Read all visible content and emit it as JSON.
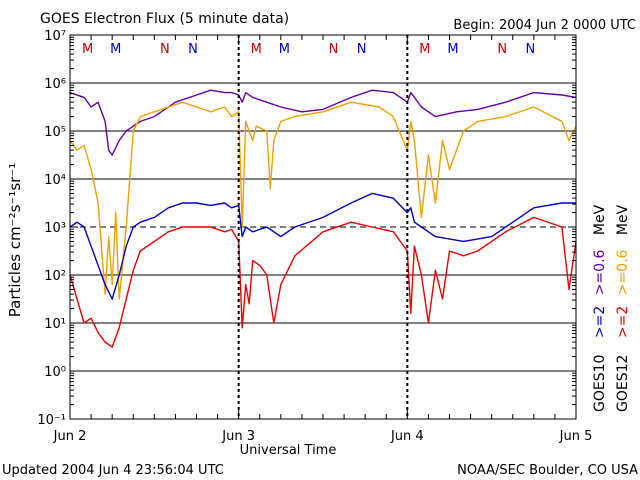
{
  "chart_data": {
    "type": "line",
    "title": "GOES Electron Flux (5 minute data)",
    "begin": "Begin: 2004 Jun 2 0000 UTC",
    "xlabel": "Universal Time",
    "ylabel": "Particles cm⁻²s⁻¹sr⁻¹",
    "x_ticks": [
      "Jun 2",
      "Jun 3",
      "Jun 4",
      "Jun 5"
    ],
    "xlim_hours": [
      0,
      72
    ],
    "y_scale": "log",
    "ylim_exp": [
      -1,
      7
    ],
    "y_tick_labels": [
      "10⁻¹",
      "10⁰",
      "10¹",
      "10²",
      "10³",
      "10⁴",
      "10⁵",
      "10⁶",
      "10⁷"
    ],
    "threshold_line": 1000,
    "updated": "Updated 2004 Jun  4 23:56:04 UTC",
    "credit": "NOAA/SEC Boulder, CO USA",
    "markers": [
      {
        "label": "M",
        "hour": 2.5,
        "color": "#cc0000"
      },
      {
        "label": "M",
        "hour": 6.5,
        "color": "#0000cc"
      },
      {
        "label": "N",
        "hour": 13.5,
        "color": "#cc0000"
      },
      {
        "label": "N",
        "hour": 17.5,
        "color": "#0000cc"
      },
      {
        "label": "M",
        "hour": 26.5,
        "color": "#cc0000"
      },
      {
        "label": "M",
        "hour": 30.5,
        "color": "#0000cc"
      },
      {
        "label": "N",
        "hour": 37.5,
        "color": "#cc0000"
      },
      {
        "label": "N",
        "hour": 41.5,
        "color": "#0000cc"
      },
      {
        "label": "M",
        "hour": 50.5,
        "color": "#cc0000"
      },
      {
        "label": "M",
        "hour": 54.5,
        "color": "#0000cc"
      },
      {
        "label": "N",
        "hour": 61.5,
        "color": "#cc0000"
      },
      {
        "label": "N",
        "hour": 65.5,
        "color": "#0000cc"
      }
    ],
    "legend": {
      "goes10": {
        "label": "GOES10",
        "e2": ">=2",
        "e06": ">=0.6",
        "e2_color": "#0000cc",
        "e06_color": "#6600aa"
      },
      "goes12": {
        "label": "GOES12",
        "e2": ">=2",
        "e06": ">=0.6",
        "e2_color": "#ee0000",
        "e06_color": "#f0a000"
      },
      "unit": "MeV"
    },
    "series": [
      {
        "name": "GOES10 >=0.6 MeV",
        "color": "#6600aa",
        "x": [
          0,
          2,
          3,
          4,
          5,
          5.5,
          6,
          7,
          8,
          10,
          12,
          15,
          18,
          20,
          22,
          23,
          24,
          24.5,
          25,
          26,
          28,
          30,
          33,
          36,
          40,
          43,
          46,
          48,
          48.5,
          49,
          50,
          52,
          55,
          58,
          62,
          66,
          70,
          72
        ],
        "y_log": [
          5.8,
          5.7,
          5.5,
          5.6,
          5.2,
          4.6,
          4.5,
          4.8,
          5.0,
          5.2,
          5.3,
          5.6,
          5.75,
          5.85,
          5.8,
          5.8,
          5.75,
          5.6,
          5.8,
          5.7,
          5.6,
          5.5,
          5.4,
          5.45,
          5.7,
          5.85,
          5.8,
          5.6,
          5.8,
          5.7,
          5.5,
          5.3,
          5.4,
          5.45,
          5.6,
          5.8,
          5.75,
          5.7
        ]
      },
      {
        "name": "GOES12 >=0.6 MeV",
        "color": "#f0a000",
        "x": [
          0,
          1,
          2,
          3,
          4,
          5,
          5.5,
          6,
          6.5,
          7,
          8,
          9,
          10,
          12,
          14,
          16,
          18,
          20,
          22,
          23,
          24,
          24.5,
          25,
          25.5,
          26,
          26.5,
          28,
          28.5,
          29,
          30,
          32,
          36,
          40,
          44,
          46,
          48,
          48.5,
          49,
          50,
          51,
          52,
          53,
          54,
          56,
          58,
          62,
          66,
          70,
          71,
          72
        ],
        "y_log": [
          4.8,
          4.6,
          4.7,
          4.2,
          3.5,
          1.6,
          2.8,
          1.8,
          3.3,
          1.5,
          3.0,
          5.0,
          5.3,
          5.4,
          5.5,
          5.6,
          5.5,
          5.4,
          5.5,
          5.3,
          5.4,
          3.0,
          5.2,
          5.0,
          4.8,
          5.1,
          5.0,
          3.8,
          4.8,
          5.2,
          5.3,
          5.4,
          5.6,
          5.5,
          5.3,
          4.6,
          5.2,
          4.8,
          3.2,
          4.5,
          3.5,
          4.8,
          4.2,
          5.0,
          5.2,
          5.3,
          5.5,
          5.2,
          4.8,
          5.1
        ]
      },
      {
        "name": "GOES10 >=2 MeV",
        "color": "#0000cc",
        "x": [
          0,
          1,
          2,
          3,
          4,
          5,
          6,
          7,
          8,
          9,
          10,
          12,
          14,
          16,
          18,
          20,
          22,
          23,
          24,
          24.5,
          25,
          26,
          28,
          30,
          32,
          36,
          40,
          43,
          46,
          48,
          48.5,
          49,
          50,
          51,
          52,
          56,
          60,
          64,
          66,
          70,
          72
        ],
        "y_log": [
          3.0,
          3.1,
          3.0,
          2.6,
          2.2,
          1.8,
          1.5,
          2.0,
          2.6,
          3.0,
          3.1,
          3.2,
          3.4,
          3.5,
          3.5,
          3.45,
          3.5,
          3.4,
          3.45,
          2.8,
          3.0,
          2.9,
          3.0,
          2.8,
          3.0,
          3.2,
          3.5,
          3.7,
          3.6,
          3.3,
          3.4,
          3.1,
          3.0,
          2.9,
          2.8,
          2.7,
          2.8,
          3.2,
          3.4,
          3.5,
          3.5
        ]
      },
      {
        "name": "GOES12 >=2 MeV",
        "color": "#ee0000",
        "x": [
          0,
          1,
          2,
          3,
          4,
          5,
          6,
          7,
          8,
          9,
          10,
          12,
          14,
          16,
          18,
          20,
          22,
          23,
          24,
          24.5,
          25,
          25.5,
          26,
          27,
          28,
          29,
          30,
          32,
          36,
          40,
          43,
          46,
          48,
          48.5,
          49,
          50,
          51,
          52,
          53,
          54,
          56,
          58,
          62,
          66,
          70,
          71,
          72
        ],
        "y_log": [
          2.0,
          1.5,
          1.0,
          1.1,
          0.8,
          0.6,
          0.5,
          0.9,
          1.5,
          2.1,
          2.5,
          2.7,
          2.9,
          3.0,
          3.0,
          3.0,
          2.9,
          2.95,
          2.7,
          0.9,
          1.8,
          1.4,
          2.3,
          2.2,
          2.0,
          1.0,
          1.8,
          2.4,
          2.9,
          3.1,
          3.0,
          2.9,
          2.5,
          1.2,
          2.6,
          2.0,
          1.0,
          2.1,
          1.5,
          2.5,
          2.4,
          2.5,
          2.9,
          3.2,
          3.0,
          1.7,
          2.7
        ]
      }
    ]
  }
}
